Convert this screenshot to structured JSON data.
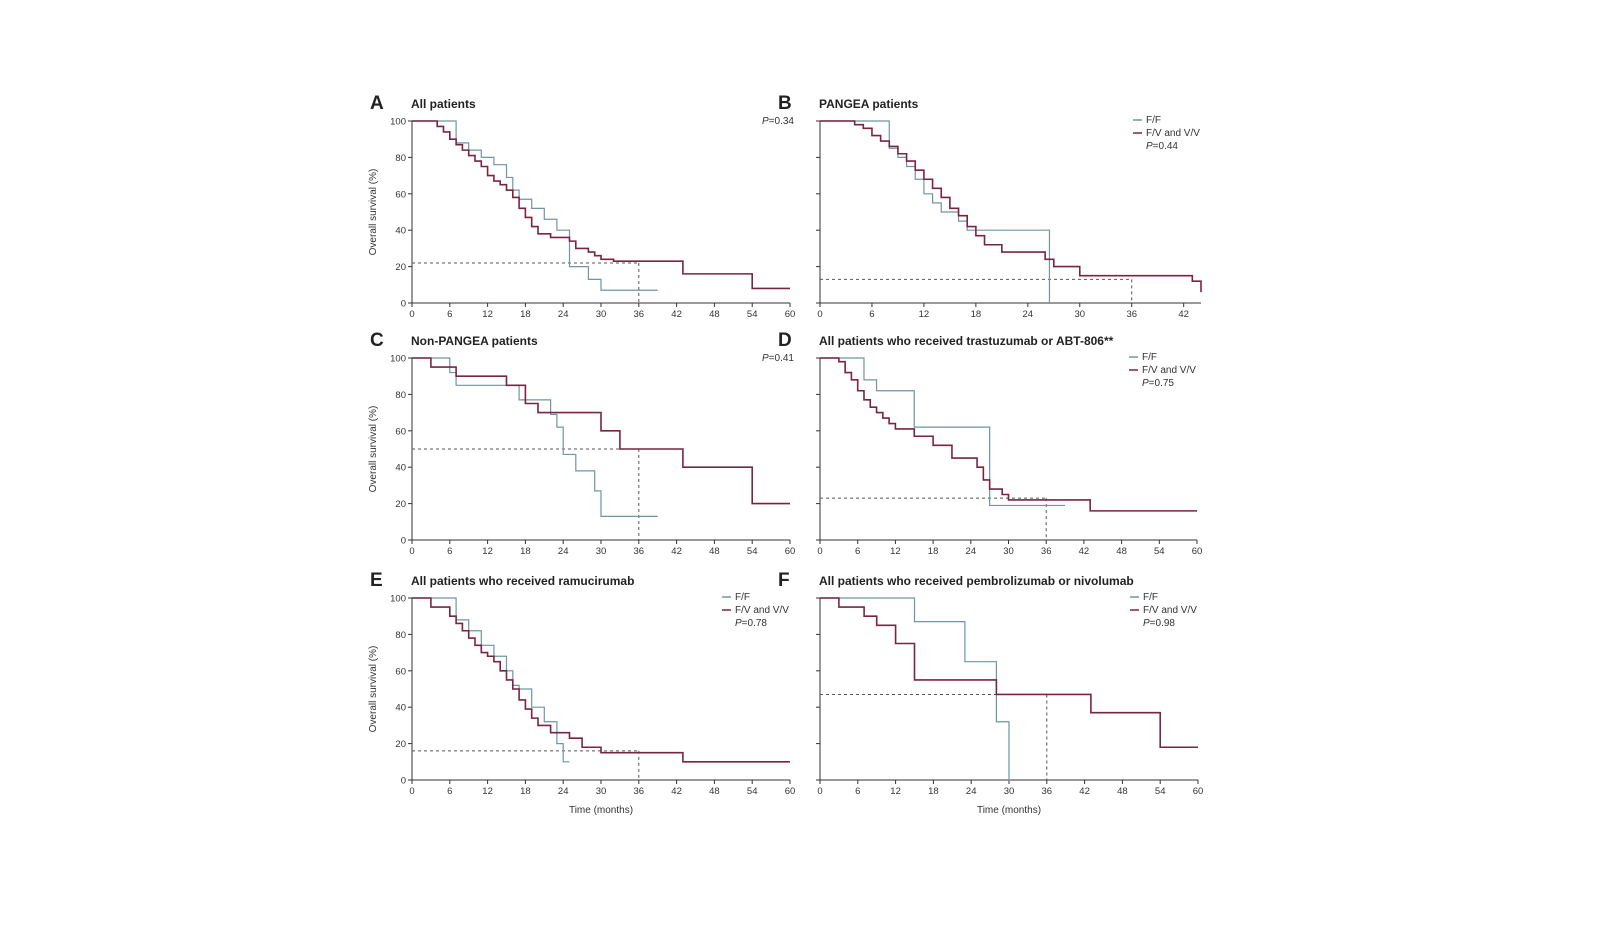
{
  "colors": {
    "ff": "#6f95a6",
    "fvvv": "#7a2443",
    "ref": "#555555",
    "axis": "#333333"
  },
  "chart_data": [
    {
      "type": "line",
      "panel": "A",
      "title": "All patients",
      "xlabel": "",
      "ylabel": "Overall survival (%)",
      "xlim": [
        0,
        60
      ],
      "ylim": [
        0,
        100
      ],
      "xticks": [
        0,
        6,
        12,
        18,
        24,
        30,
        36,
        42,
        48,
        54,
        60
      ],
      "yticks": [
        0,
        20,
        40,
        60,
        80,
        100
      ],
      "p_value": "=0.34",
      "legend": [],
      "series": [
        {
          "key": "ff",
          "x": [
            0,
            2,
            6,
            7,
            9,
            11,
            13,
            15,
            16,
            17,
            19,
            21,
            23,
            25,
            28,
            30,
            39
          ],
          "y": [
            100,
            100,
            100,
            88,
            84,
            80,
            76,
            69,
            62,
            57,
            52,
            46,
            40,
            20,
            13,
            7,
            7
          ]
        },
        {
          "key": "fvvv",
          "x": [
            0,
            3,
            4,
            5,
            6,
            7,
            8,
            9,
            10,
            11,
            12,
            13,
            14,
            15,
            16,
            17,
            18,
            19,
            20,
            22,
            25,
            26,
            28,
            29,
            30,
            32,
            43,
            54,
            60
          ],
          "y": [
            100,
            100,
            97,
            94,
            90,
            87,
            84,
            81,
            78,
            75,
            70,
            67,
            65,
            62,
            58,
            52,
            47,
            42,
            38,
            36,
            34,
            30,
            28,
            26,
            24,
            23,
            16,
            8,
            8
          ]
        }
      ],
      "ref": {
        "y": 22,
        "x": 36
      }
    },
    {
      "type": "line",
      "panel": "B",
      "title": "PANGEA patients",
      "xlabel": "",
      "ylabel": "",
      "xlim": [
        0,
        44
      ],
      "ylim": [
        0,
        100
      ],
      "xticks": [
        0,
        6,
        12,
        18,
        24,
        30,
        36,
        42
      ],
      "yticks": [
        0,
        20,
        40,
        60,
        80,
        100
      ],
      "p_value": "=0.44",
      "legend": [
        "F/F",
        "F/V and V/V"
      ],
      "series": [
        {
          "key": "ff",
          "x": [
            0,
            4,
            7,
            8,
            9,
            10,
            11,
            12,
            13,
            14,
            16,
            17,
            26,
            26.5
          ],
          "y": [
            100,
            100,
            100,
            85,
            80,
            75,
            68,
            60,
            55,
            50,
            45,
            40,
            40,
            0
          ]
        },
        {
          "key": "fvvv",
          "x": [
            0,
            3,
            4,
            5,
            6,
            7,
            8,
            9,
            10,
            11,
            12,
            13,
            14,
            15,
            16,
            17,
            18,
            19,
            21,
            26,
            27,
            30,
            43,
            44
          ],
          "y": [
            100,
            100,
            98,
            96,
            92,
            89,
            86,
            82,
            78,
            73,
            68,
            63,
            58,
            52,
            48,
            42,
            37,
            32,
            28,
            24,
            20,
            15,
            12,
            6
          ]
        }
      ],
      "ref": {
        "y": 13,
        "x": 36
      }
    },
    {
      "type": "line",
      "panel": "C",
      "title": "Non-PANGEA patients",
      "xlabel": "",
      "ylabel": "Overall survival (%)",
      "xlim": [
        0,
        60
      ],
      "ylim": [
        0,
        100
      ],
      "xticks": [
        0,
        6,
        12,
        18,
        24,
        30,
        36,
        42,
        48,
        54,
        60
      ],
      "yticks": [
        0,
        20,
        40,
        60,
        80,
        100
      ],
      "p_value": "=0.41",
      "legend": [],
      "series": [
        {
          "key": "ff",
          "x": [
            0,
            3,
            6,
            7,
            15,
            17,
            22,
            23,
            24,
            26,
            29,
            30,
            39
          ],
          "y": [
            100,
            100,
            92,
            85,
            85,
            77,
            69,
            62,
            47,
            38,
            27,
            13,
            13
          ]
        },
        {
          "key": "fvvv",
          "x": [
            0,
            3,
            7,
            15,
            18,
            20,
            30,
            33,
            36,
            43,
            54,
            60
          ],
          "y": [
            100,
            95,
            90,
            85,
            75,
            70,
            60,
            50,
            50,
            40,
            20,
            20
          ]
        }
      ],
      "ref": {
        "y": 50,
        "x": 36
      }
    },
    {
      "type": "line",
      "panel": "D",
      "title": "All patients who received trastuzumab or ABT-806**",
      "xlabel": "",
      "ylabel": "",
      "xlim": [
        0,
        60
      ],
      "ylim": [
        0,
        100
      ],
      "xticks": [
        0,
        6,
        12,
        18,
        24,
        30,
        36,
        42,
        48,
        54,
        60
      ],
      "yticks": [
        0,
        20,
        40,
        60,
        80,
        100
      ],
      "p_value": "=0.75",
      "legend": [
        "F/F",
        "F/V and V/V"
      ],
      "series": [
        {
          "key": "ff",
          "x": [
            0,
            4,
            6,
            7,
            9,
            14,
            15,
            26,
            27,
            39
          ],
          "y": [
            100,
            100,
            100,
            88,
            82,
            82,
            62,
            62,
            19,
            19
          ]
        },
        {
          "key": "fvvv",
          "x": [
            0,
            3,
            4,
            5,
            6,
            7,
            8,
            9,
            10,
            11,
            12,
            14,
            15,
            18,
            21,
            25,
            26,
            27,
            29,
            30,
            43,
            60
          ],
          "y": [
            100,
            98,
            92,
            88,
            82,
            77,
            73,
            70,
            67,
            64,
            61,
            61,
            57,
            52,
            45,
            40,
            33,
            28,
            25,
            22,
            16,
            16
          ]
        }
      ],
      "ref": {
        "y": 23,
        "x": 36
      }
    },
    {
      "type": "line",
      "panel": "E",
      "title": "All patients who received ramucirumab",
      "xlabel": "Time (months)",
      "ylabel": "Overall survival (%)",
      "xlim": [
        0,
        60
      ],
      "ylim": [
        0,
        100
      ],
      "xticks": [
        0,
        6,
        12,
        18,
        24,
        30,
        36,
        42,
        48,
        54,
        60
      ],
      "yticks": [
        0,
        20,
        40,
        60,
        80,
        100
      ],
      "p_value": "=0.78",
      "legend": [
        "F/F",
        "F/V and V/V"
      ],
      "series": [
        {
          "key": "ff",
          "x": [
            0,
            2,
            6,
            7,
            9,
            11,
            13,
            15,
            16,
            17,
            19,
            21,
            23,
            24,
            25
          ],
          "y": [
            100,
            100,
            100,
            88,
            82,
            74,
            68,
            60,
            52,
            50,
            40,
            32,
            20,
            10,
            10
          ]
        },
        {
          "key": "fvvv",
          "x": [
            0,
            3,
            5,
            6,
            7,
            8,
            9,
            10,
            11,
            12,
            13,
            14,
            15,
            16,
            17,
            18,
            19,
            20,
            22,
            25,
            27,
            30,
            43,
            60
          ],
          "y": [
            100,
            95,
            95,
            90,
            86,
            82,
            78,
            74,
            70,
            68,
            65,
            60,
            55,
            50,
            44,
            39,
            34,
            30,
            26,
            23,
            18,
            15,
            10,
            10
          ]
        }
      ],
      "ref": {
        "y": 16,
        "x": 36
      }
    },
    {
      "type": "line",
      "panel": "F",
      "title": "All patients who received pembrolizumab or nivolumab",
      "xlabel": "Time (months)",
      "ylabel": "",
      "xlim": [
        0,
        60
      ],
      "ylim": [
        0,
        100
      ],
      "xticks": [
        0,
        6,
        12,
        18,
        24,
        30,
        36,
        42,
        48,
        54,
        60
      ],
      "yticks": [
        0,
        20,
        40,
        60,
        80,
        100
      ],
      "p_value": "=0.98",
      "legend": [
        "F/F",
        "F/V and V/V"
      ],
      "series": [
        {
          "key": "ff",
          "x": [
            0,
            15,
            23,
            28,
            30,
            30.2
          ],
          "y": [
            100,
            87,
            65,
            32,
            0,
            0
          ]
        },
        {
          "key": "fvvv",
          "x": [
            0,
            3,
            7,
            9,
            12,
            15,
            28,
            43,
            54,
            60
          ],
          "y": [
            100,
            95,
            90,
            85,
            75,
            55,
            47,
            37,
            18,
            18
          ]
        }
      ],
      "ref": {
        "y": 47,
        "x": 36
      }
    }
  ],
  "legend_labels": {
    "ff": "F/F",
    "fvvv": "F/V and V/V"
  },
  "p_prefix": "P"
}
